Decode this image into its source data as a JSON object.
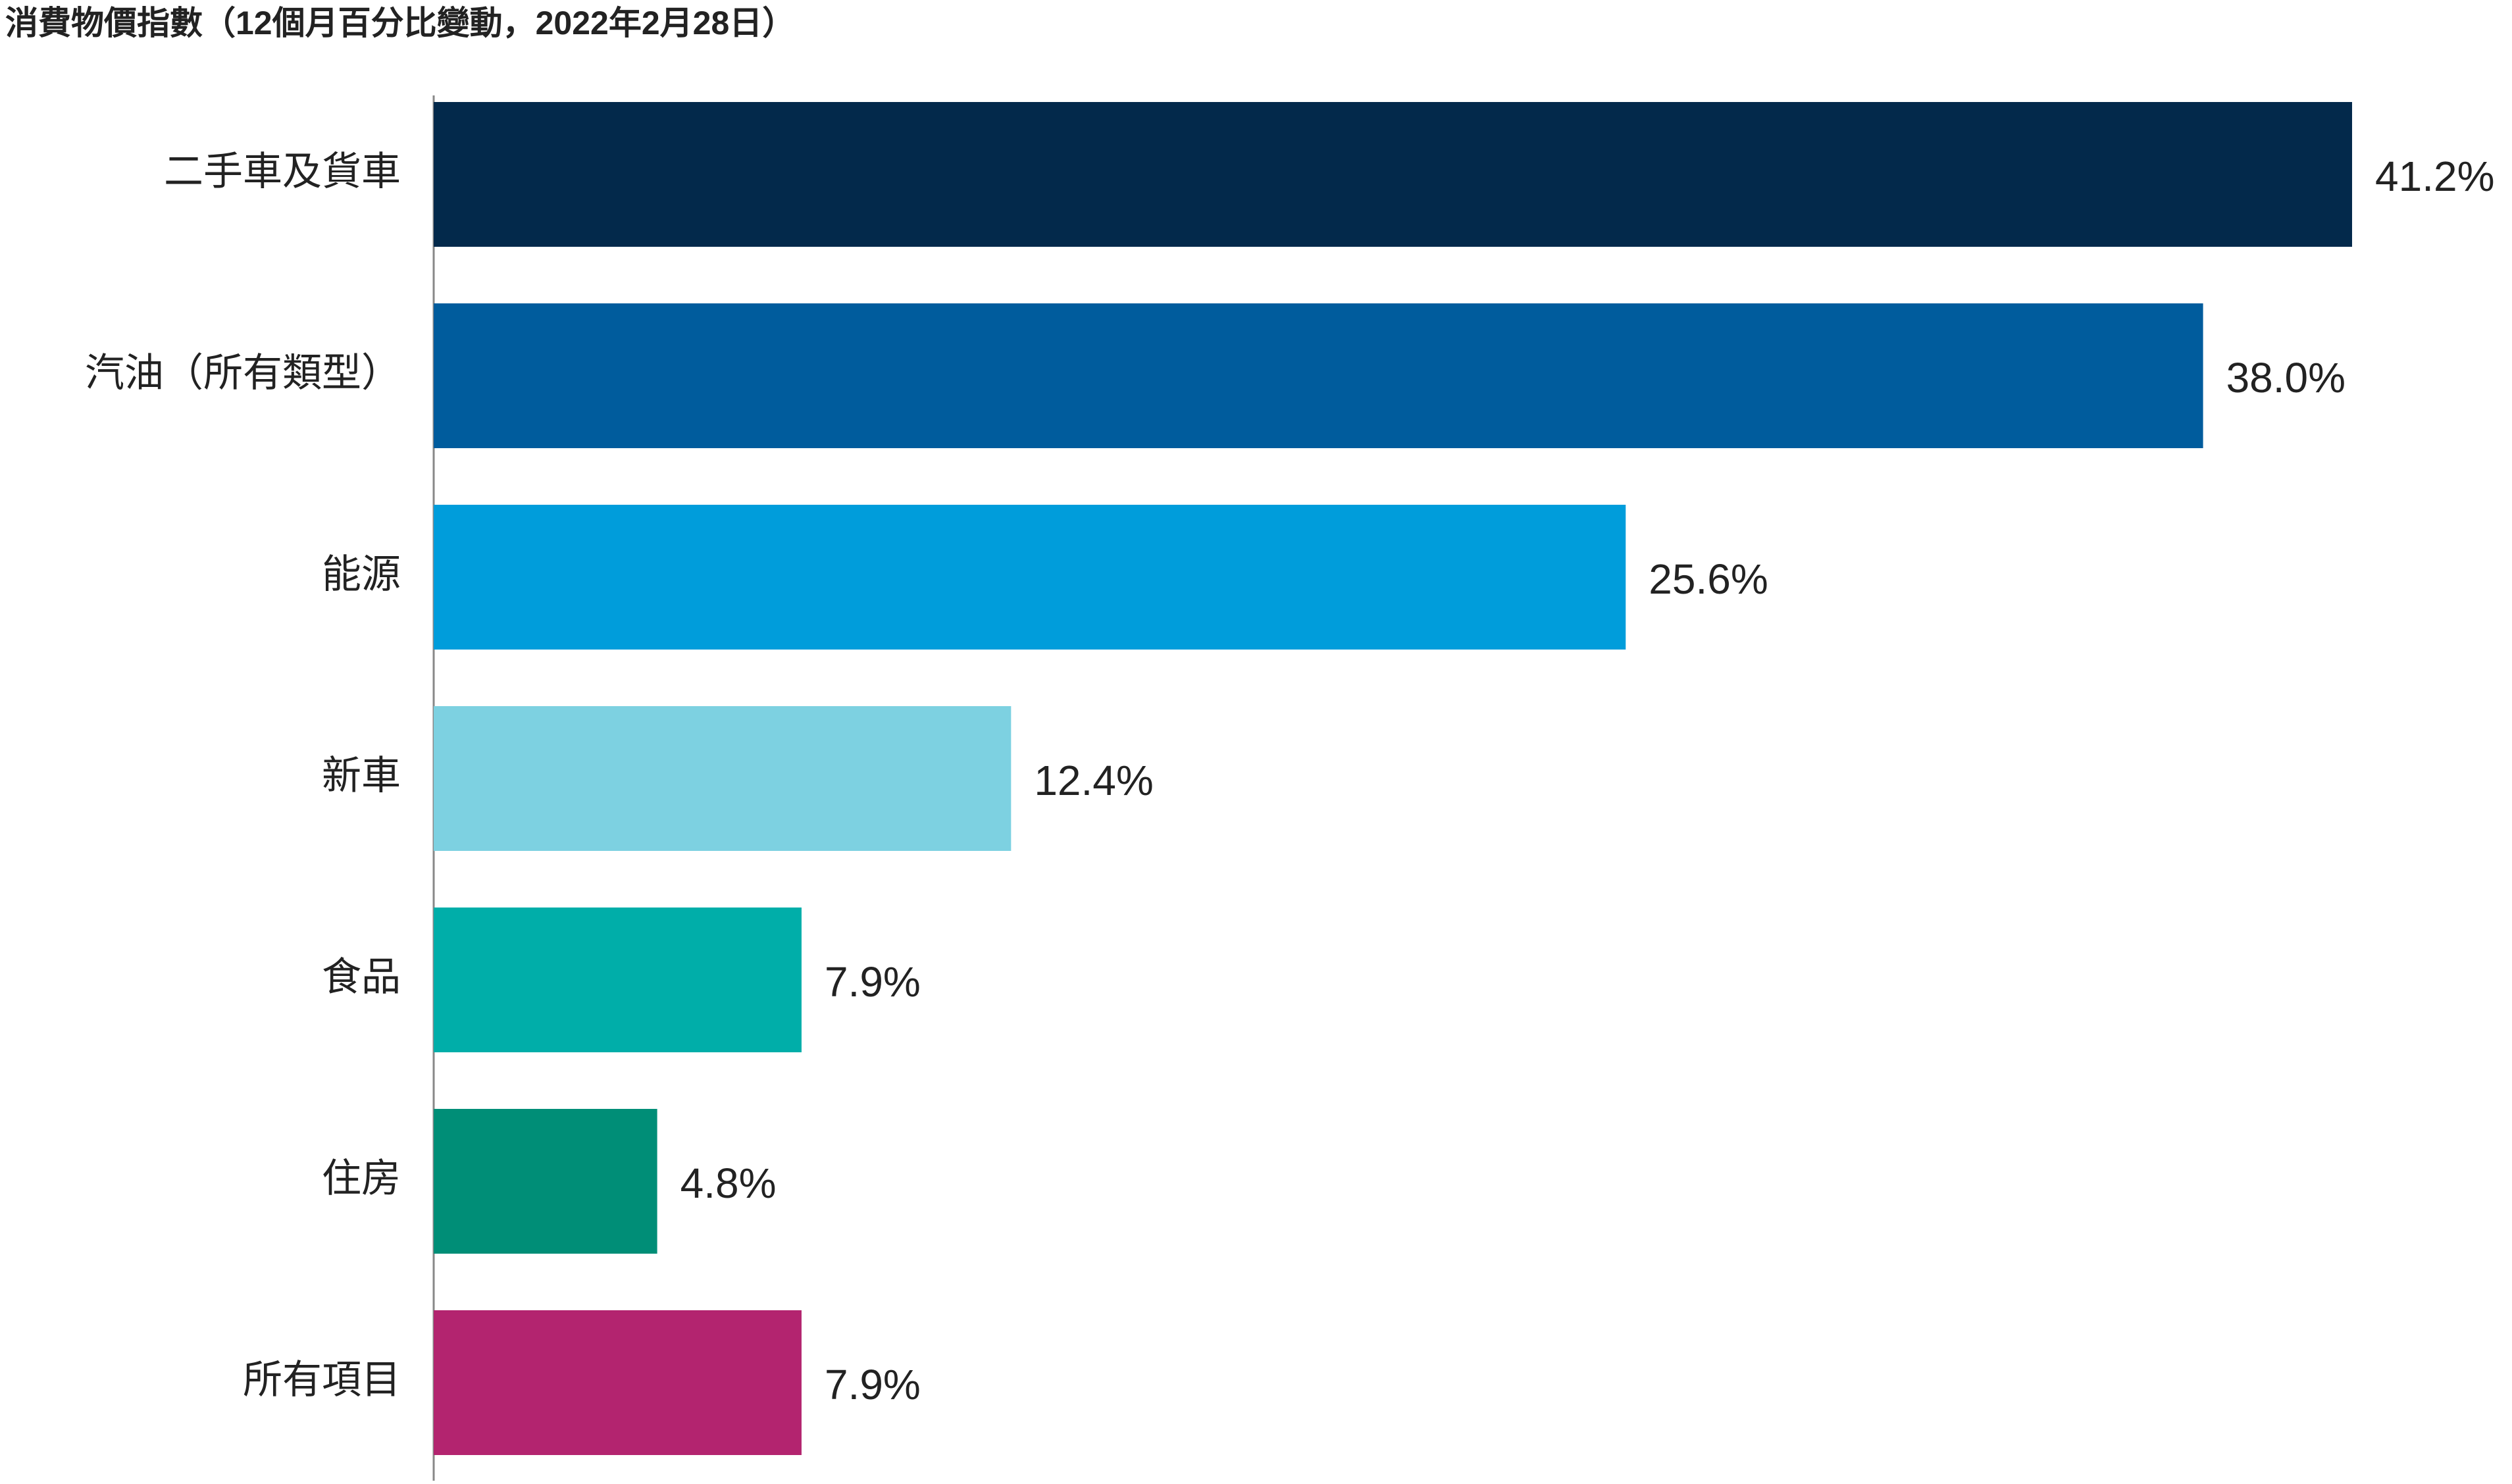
{
  "chart_data": {
    "type": "bar",
    "orientation": "horizontal",
    "title": "消費物價指數（12個月百分比變動，2022年2月28日）",
    "categories": [
      "二手車及貨車",
      "汽油（所有類型）",
      "能源",
      "新車",
      "食品",
      "住房",
      "所有項目"
    ],
    "values": [
      41.2,
      38.0,
      25.6,
      12.4,
      7.9,
      4.8,
      7.9
    ],
    "value_labels": [
      "41.2%",
      "38.0%",
      "25.6%",
      "12.4%",
      "7.9%",
      "4.8%",
      "7.9%"
    ],
    "colors": [
      "#03294b",
      "#005c9d",
      "#009ddb",
      "#7dd1e1",
      "#00aea9",
      "#008e77",
      "#b3246f"
    ],
    "xlim": [
      0,
      41.2
    ],
    "grid": false,
    "legend": "none",
    "axis_color": "#888888",
    "text_color": "#222222"
  }
}
